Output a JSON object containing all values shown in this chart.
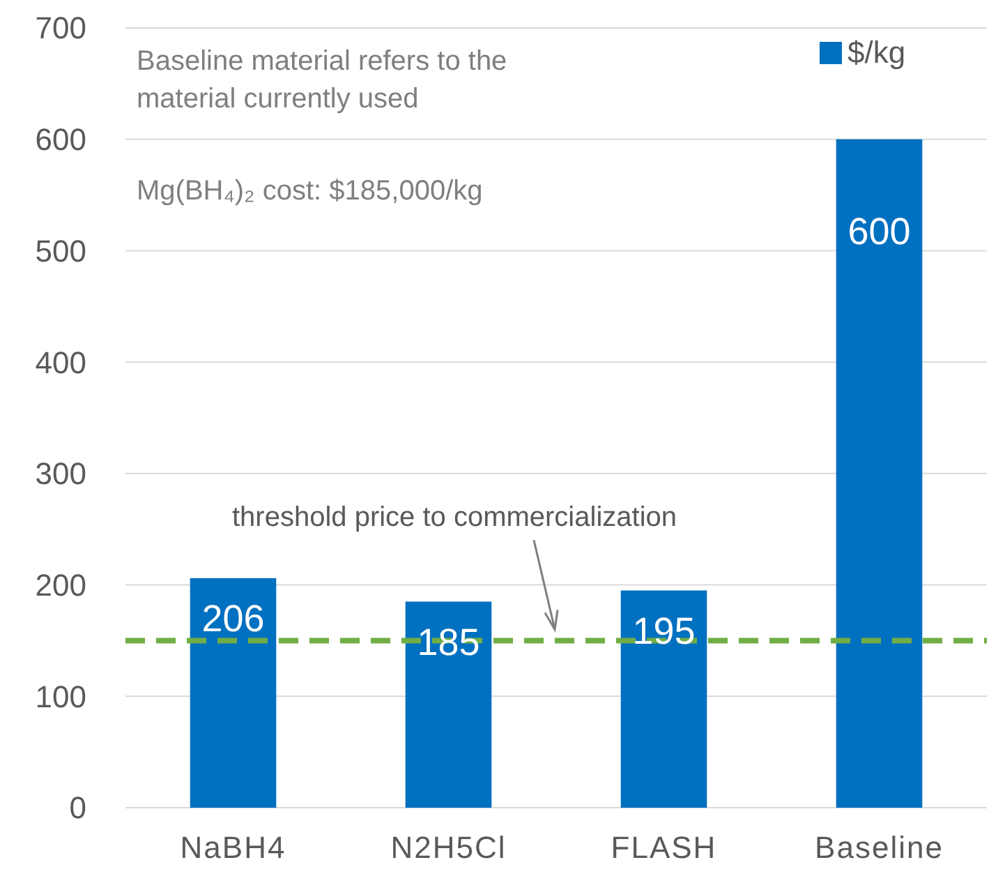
{
  "chart_data": {
    "type": "bar",
    "categories": [
      "NaBH4",
      "N2H5Cl",
      "FLASH",
      "Baseline"
    ],
    "series": [
      {
        "name": "$/kg",
        "color": "#0070c0",
        "values": [
          206,
          185,
          195,
          600
        ]
      }
    ],
    "ylim": [
      0,
      700
    ],
    "yticks": [
      0,
      100,
      200,
      300,
      400,
      500,
      600,
      700
    ],
    "grid": "y",
    "legend": "top right",
    "data_labels": true,
    "ref_lines": [
      {
        "axis": "y",
        "value": 150,
        "label": "threshold price to commercialization",
        "color": "#70ad47",
        "line_style": "dashed"
      }
    ],
    "annotations": [
      "Baseline material refers to the material currently used",
      "Mg(BH₄)₂ cost: $185,000/kg"
    ]
  }
}
